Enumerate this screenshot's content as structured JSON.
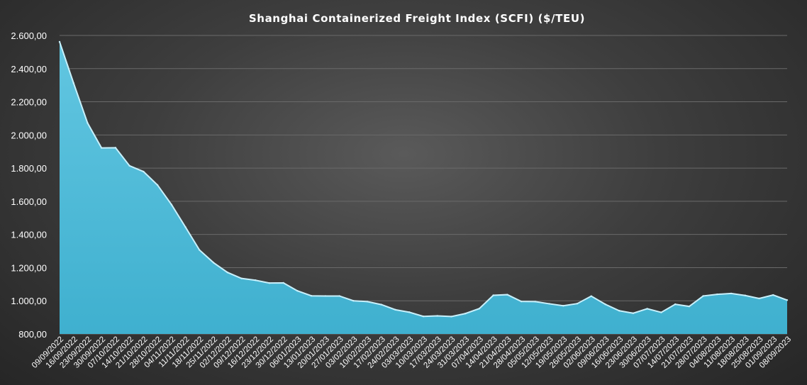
{
  "chart_data": {
    "type": "area",
    "title": "Shanghai  Containerized Freight Index  (SCFI) ($/TEU)",
    "xlabel": "",
    "ylabel": "",
    "ylim": [
      800,
      2600
    ],
    "yticks": [
      "800,00",
      "1.000,00",
      "1.200,00",
      "1.400,00",
      "1.600,00",
      "1.800,00",
      "2.000,00",
      "2.200,00",
      "2.400,00",
      "2.600,00"
    ],
    "grid": true,
    "legend": "none",
    "colors": {
      "fill": "#55bfdb",
      "edge": "#c8f0fb"
    },
    "categories": [
      "09/09/2022",
      "16/09/2022",
      "23/09/2022",
      "30/09/2022",
      "07/10/2022",
      "14/10/2022",
      "21/10/2022",
      "28/10/2022",
      "04/11/2022",
      "11/11/2022",
      "18/11/2022",
      "25/11/2022",
      "02/12/2022",
      "09/12/2022",
      "16/12/2022",
      "23/12/2022",
      "30/12/2022",
      "06/01/2023",
      "13/01/2023",
      "20/01/2023",
      "27/01/2023",
      "03/02/2023",
      "10/02/2023",
      "17/02/2023",
      "24/02/2023",
      "03/03/2023",
      "10/03/2023",
      "17/03/2023",
      "24/03/2023",
      "31/03/2023",
      "07/04/2023",
      "14/04/2023",
      "21/04/2023",
      "28/04/2023",
      "05/05/2023",
      "12/05/2023",
      "19/05/2023",
      "26/05/2023",
      "02/06/2023",
      "09/06/2023",
      "16/06/2023",
      "23/06/2023",
      "30/06/2023",
      "07/07/2023",
      "14/07/2023",
      "21/07/2023",
      "28/07/2023",
      "04/08/2023",
      "11/08/2023",
      "18/08/2023",
      "25/08/2023",
      "01/09/2023",
      "08/09/2023"
    ],
    "values": [
      2562,
      2313,
      2072,
      1922,
      1923,
      1814,
      1779,
      1698,
      1580,
      1444,
      1306,
      1230,
      1171,
      1135,
      1124,
      1107,
      1108,
      1060,
      1030,
      1029,
      1029,
      1000,
      995,
      977,
      946,
      931,
      906,
      909,
      905,
      923,
      953,
      1033,
      1037,
      996,
      995,
      982,
      970,
      983,
      1028,
      979,
      940,
      925,
      952,
      930,
      979,
      966,
      1029,
      1039,
      1044,
      1032,
      1014,
      1035,
      1004
    ]
  }
}
